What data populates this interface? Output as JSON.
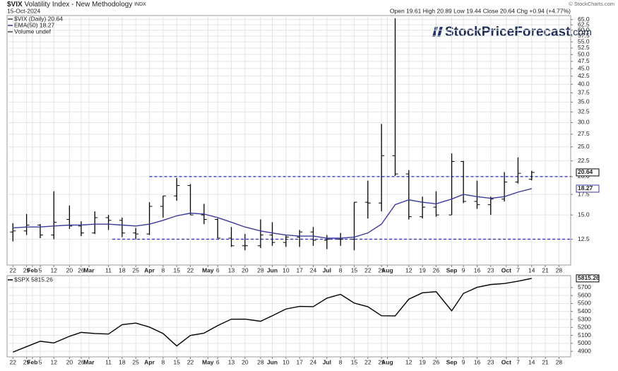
{
  "chart_data": [
    {
      "type": "ohlc",
      "symbol": "$VIX",
      "title": "Volatility Index - New Methodology",
      "exchange": "INDX",
      "date": "15-Oct-2024",
      "quote": "Open 19.61  High 20.89  Low 19.44  Close 20.64  Chg +0.94 (+4.77%)",
      "copyright": "© StockCharts.com",
      "watermark": [
        "StockPriceForecast",
        ".com"
      ],
      "legend": [
        "$VIX (Daily) 20.64",
        "EMA(50) 18.27",
        "Volume undef"
      ],
      "color": "#000000",
      "log_scale": true,
      "grid": true,
      "x": [
        "2024-01-22",
        "2024-01-29",
        "2024-02-05",
        "2024-02-12",
        "2024-02-20",
        "2024-02-26",
        "2024-03-04",
        "2024-03-11",
        "2024-03-18",
        "2024-03-25",
        "2024-04-01",
        "2024-04-08",
        "2024-04-15",
        "2024-04-22",
        "2024-04-29",
        "2024-05-06",
        "2024-05-13",
        "2024-05-20",
        "2024-05-28",
        "2024-06-03",
        "2024-06-10",
        "2024-06-17",
        "2024-06-24",
        "2024-07-01",
        "2024-07-08",
        "2024-07-15",
        "2024-07-22",
        "2024-07-29",
        "2024-08-05",
        "2024-08-12",
        "2024-08-19",
        "2024-08-26",
        "2024-09-03",
        "2024-09-09",
        "2024-09-16",
        "2024-09-23",
        "2024-09-30",
        "2024-10-07",
        "2024-10-14"
      ],
      "open": [
        13.2,
        13.3,
        13.9,
        12.9,
        14.5,
        13.8,
        13.1,
        14.7,
        14.4,
        13.1,
        13.0,
        16.0,
        17.3,
        18.7,
        15.0,
        14.5,
        12.6,
        11.9,
        11.9,
        12.9,
        12.2,
        12.7,
        13.2,
        12.4,
        12.5,
        12.5,
        16.5,
        16.4,
        23.4,
        20.4,
        14.8,
        15.9,
        15.0,
        22.4,
        16.6,
        16.2,
        16.9,
        19.2,
        19.61
      ],
      "high": [
        14.1,
        15.1,
        14.0,
        17.9,
        16.1,
        14.3,
        15.4,
        15.0,
        14.7,
        13.6,
        16.5,
        17.3,
        19.8,
        18.9,
        16.3,
        14.6,
        13.7,
        13.0,
        14.5,
        14.2,
        12.9,
        13.4,
        13.7,
        12.9,
        13.1,
        16.5,
        19.4,
        29.7,
        65.7,
        21.0,
        17.2,
        17.9,
        23.8,
        22.5,
        19.4,
        17.2,
        20.7,
        23.1,
        20.89
      ],
      "low": [
        12.3,
        12.9,
        12.6,
        12.5,
        13.5,
        12.8,
        13.0,
        13.4,
        12.7,
        12.5,
        12.9,
        14.7,
        16.7,
        15.0,
        14.0,
        12.6,
        11.8,
        11.5,
        11.7,
        11.9,
        11.8,
        11.8,
        11.9,
        11.6,
        11.9,
        11.5,
        14.6,
        15.4,
        20.1,
        14.5,
        14.6,
        14.8,
        15.0,
        16.4,
        15.7,
        15.0,
        16.6,
        19.0,
        19.44
      ],
      "close": [
        13.3,
        13.9,
        12.9,
        14.2,
        13.8,
        13.1,
        14.7,
        14.4,
        13.1,
        13.0,
        16.0,
        17.3,
        18.7,
        15.0,
        14.5,
        12.6,
        11.9,
        11.9,
        12.9,
        12.2,
        12.7,
        13.2,
        12.4,
        12.5,
        12.5,
        16.5,
        16.4,
        23.4,
        20.4,
        14.8,
        15.9,
        15.0,
        22.4,
        16.6,
        16.2,
        16.9,
        19.2,
        20.5,
        20.64
      ],
      "ema": {
        "color": "#3a3a9b",
        "values": [
          13.6,
          13.7,
          13.7,
          13.8,
          13.9,
          13.9,
          14.0,
          14.0,
          13.9,
          13.8,
          14.0,
          14.4,
          14.9,
          15.2,
          15.1,
          14.7,
          14.2,
          13.7,
          13.3,
          13.1,
          12.9,
          12.8,
          12.8,
          12.6,
          12.6,
          12.7,
          13.1,
          14.0,
          16.2,
          16.8,
          16.5,
          16.3,
          16.9,
          17.5,
          17.2,
          17.0,
          17.2,
          17.8,
          18.27
        ]
      },
      "reference_lines": [
        {
          "value": 20,
          "start": "2024-04-01",
          "color": "#2727c8"
        },
        {
          "value": 12.5,
          "start": "2024-03-13",
          "color": "#2727c8"
        }
      ],
      "xlim": [
        "2024-01-19",
        "2024-11-03"
      ],
      "xticks": [
        {
          "value": "2024-01-22",
          "label": "22"
        },
        {
          "value": "2024-01-29",
          "label": "29"
        },
        {
          "value": "2024-02-01",
          "label": "Feb"
        },
        {
          "value": "2024-02-05",
          "label": "5"
        },
        {
          "value": "2024-02-12",
          "label": "12"
        },
        {
          "value": "2024-02-20",
          "label": "20"
        },
        {
          "value": "2024-02-26",
          "label": "26"
        },
        {
          "value": "2024-03-01",
          "label": "Mar"
        },
        {
          "value": "2024-03-11",
          "label": "11"
        },
        {
          "value": "2024-03-18",
          "label": "18"
        },
        {
          "value": "2024-03-25",
          "label": "25"
        },
        {
          "value": "2024-04-01",
          "label": "Apr"
        },
        {
          "value": "2024-04-08",
          "label": "8"
        },
        {
          "value": "2024-04-15",
          "label": "15"
        },
        {
          "value": "2024-04-22",
          "label": "22"
        },
        {
          "value": "2024-05-01",
          "label": "May"
        },
        {
          "value": "2024-05-06",
          "label": "6"
        },
        {
          "value": "2024-05-13",
          "label": "13"
        },
        {
          "value": "2024-05-20",
          "label": "20"
        },
        {
          "value": "2024-05-28",
          "label": "28"
        },
        {
          "value": "2024-06-03",
          "label": "Jun"
        },
        {
          "value": "2024-06-10",
          "label": "10"
        },
        {
          "value": "2024-06-17",
          "label": "17"
        },
        {
          "value": "2024-06-24",
          "label": "24"
        },
        {
          "value": "2024-07-01",
          "label": "Jul"
        },
        {
          "value": "2024-07-08",
          "label": "8"
        },
        {
          "value": "2024-07-15",
          "label": "15"
        },
        {
          "value": "2024-07-22",
          "label": "22"
        },
        {
          "value": "2024-07-29",
          "label": "29"
        },
        {
          "value": "2024-08-01",
          "label": "Aug"
        },
        {
          "value": "2024-08-12",
          "label": "12"
        },
        {
          "value": "2024-08-19",
          "label": "19"
        },
        {
          "value": "2024-08-26",
          "label": "26"
        },
        {
          "value": "2024-09-03",
          "label": "Sep"
        },
        {
          "value": "2024-09-09",
          "label": "9"
        },
        {
          "value": "2024-09-16",
          "label": "16"
        },
        {
          "value": "2024-09-23",
          "label": "23"
        },
        {
          "value": "2024-10-01",
          "label": "Oct"
        },
        {
          "value": "2024-10-07",
          "label": "7"
        },
        {
          "value": "2024-10-14",
          "label": "14"
        },
        {
          "value": "2024-10-21",
          "label": "21"
        },
        {
          "value": "2024-10-28",
          "label": "28"
        }
      ],
      "ylim": [
        10.3,
        67
      ],
      "yticks": [
        12.5,
        {
          "value": 15,
          "label": "15.0"
        },
        17.5,
        {
          "value": 20,
          "label": "20.0"
        },
        22.5,
        {
          "value": 25,
          "label": "25.0"
        },
        27.5,
        {
          "value": 30,
          "label": "30.0"
        },
        32.5,
        {
          "value": 35,
          "label": "35.0"
        },
        37.5,
        {
          "value": 40,
          "label": "40.0"
        },
        42.5,
        {
          "value": 45,
          "label": "45.0"
        },
        47.5,
        {
          "value": 50,
          "label": "50.0"
        },
        52.5,
        {
          "value": 55,
          "label": "55.0"
        },
        57.5,
        {
          "value": 60,
          "label": "60.0"
        },
        62.5,
        {
          "value": 65,
          "label": "65.0"
        }
      ]
    },
    {
      "type": "line",
      "title": "$SPX 5815.26",
      "color": "#000000",
      "grid": true,
      "x": [
        "2024-01-22",
        "2024-01-29",
        "2024-02-05",
        "2024-02-12",
        "2024-02-20",
        "2024-02-26",
        "2024-03-04",
        "2024-03-11",
        "2024-03-18",
        "2024-03-25",
        "2024-04-01",
        "2024-04-08",
        "2024-04-15",
        "2024-04-22",
        "2024-04-29",
        "2024-05-06",
        "2024-05-13",
        "2024-05-20",
        "2024-05-28",
        "2024-06-03",
        "2024-06-10",
        "2024-06-17",
        "2024-06-24",
        "2024-07-01",
        "2024-07-08",
        "2024-07-15",
        "2024-07-22",
        "2024-07-29",
        "2024-08-05",
        "2024-08-12",
        "2024-08-19",
        "2024-08-26",
        "2024-09-03",
        "2024-09-09",
        "2024-09-16",
        "2024-09-23",
        "2024-09-30",
        "2024-10-07",
        "2024-10-14"
      ],
      "values": [
        4890,
        4958,
        5026,
        5005,
        5088,
        5137,
        5123,
        5117,
        5234,
        5254,
        5204,
        5123,
        4967,
        5099,
        5128,
        5222,
        5303,
        5304,
        5277,
        5346,
        5431,
        5464,
        5460,
        5567,
        5615,
        5505,
        5459,
        5346,
        5344,
        5554,
        5634,
        5648,
        5408,
        5626,
        5703,
        5738,
        5751,
        5780,
        5815.26
      ],
      "xlim": [
        "2024-01-19",
        "2024-11-03"
      ],
      "xticks": [
        {
          "value": "2024-01-22",
          "label": "22"
        },
        {
          "value": "2024-01-29",
          "label": "29"
        },
        {
          "value": "2024-02-01",
          "label": "Feb"
        },
        {
          "value": "2024-02-05",
          "label": "5"
        },
        {
          "value": "2024-02-12",
          "label": "12"
        },
        {
          "value": "2024-02-20",
          "label": "20"
        },
        {
          "value": "2024-02-26",
          "label": "26"
        },
        {
          "value": "2024-03-01",
          "label": "Mar"
        },
        {
          "value": "2024-03-11",
          "label": "11"
        },
        {
          "value": "2024-03-18",
          "label": "18"
        },
        {
          "value": "2024-03-25",
          "label": "25"
        },
        {
          "value": "2024-04-01",
          "label": "Apr"
        },
        {
          "value": "2024-04-08",
          "label": "8"
        },
        {
          "value": "2024-04-15",
          "label": "15"
        },
        {
          "value": "2024-04-22",
          "label": "22"
        },
        {
          "value": "2024-05-01",
          "label": "May"
        },
        {
          "value": "2024-05-06",
          "label": "6"
        },
        {
          "value": "2024-05-13",
          "label": "13"
        },
        {
          "value": "2024-05-20",
          "label": "20"
        },
        {
          "value": "2024-05-28",
          "label": "28"
        },
        {
          "value": "2024-06-03",
          "label": "Jun"
        },
        {
          "value": "2024-06-10",
          "label": "10"
        },
        {
          "value": "2024-06-17",
          "label": "17"
        },
        {
          "value": "2024-06-24",
          "label": "24"
        },
        {
          "value": "2024-07-01",
          "label": "Jul"
        },
        {
          "value": "2024-07-08",
          "label": "8"
        },
        {
          "value": "2024-07-15",
          "label": "15"
        },
        {
          "value": "2024-07-22",
          "label": "22"
        },
        {
          "value": "2024-07-29",
          "label": "29"
        },
        {
          "value": "2024-08-01",
          "label": "Aug"
        },
        {
          "value": "2024-08-12",
          "label": "12"
        },
        {
          "value": "2024-08-19",
          "label": "19"
        },
        {
          "value": "2024-08-26",
          "label": "26"
        },
        {
          "value": "2024-09-03",
          "label": "Sep"
        },
        {
          "value": "2024-09-09",
          "label": "9"
        },
        {
          "value": "2024-09-16",
          "label": "16"
        },
        {
          "value": "2024-09-23",
          "label": "23"
        },
        {
          "value": "2024-10-01",
          "label": "Oct"
        },
        {
          "value": "2024-10-07",
          "label": "7"
        },
        {
          "value": "2024-10-14",
          "label": "14"
        },
        {
          "value": "2024-10-21",
          "label": "21"
        },
        {
          "value": "2024-10-28",
          "label": "28"
        }
      ],
      "ylim": [
        4830,
        5850
      ],
      "yticks": [
        4900,
        5000,
        5100,
        5200,
        5300,
        5400,
        5500,
        5600,
        5700
      ]
    }
  ]
}
